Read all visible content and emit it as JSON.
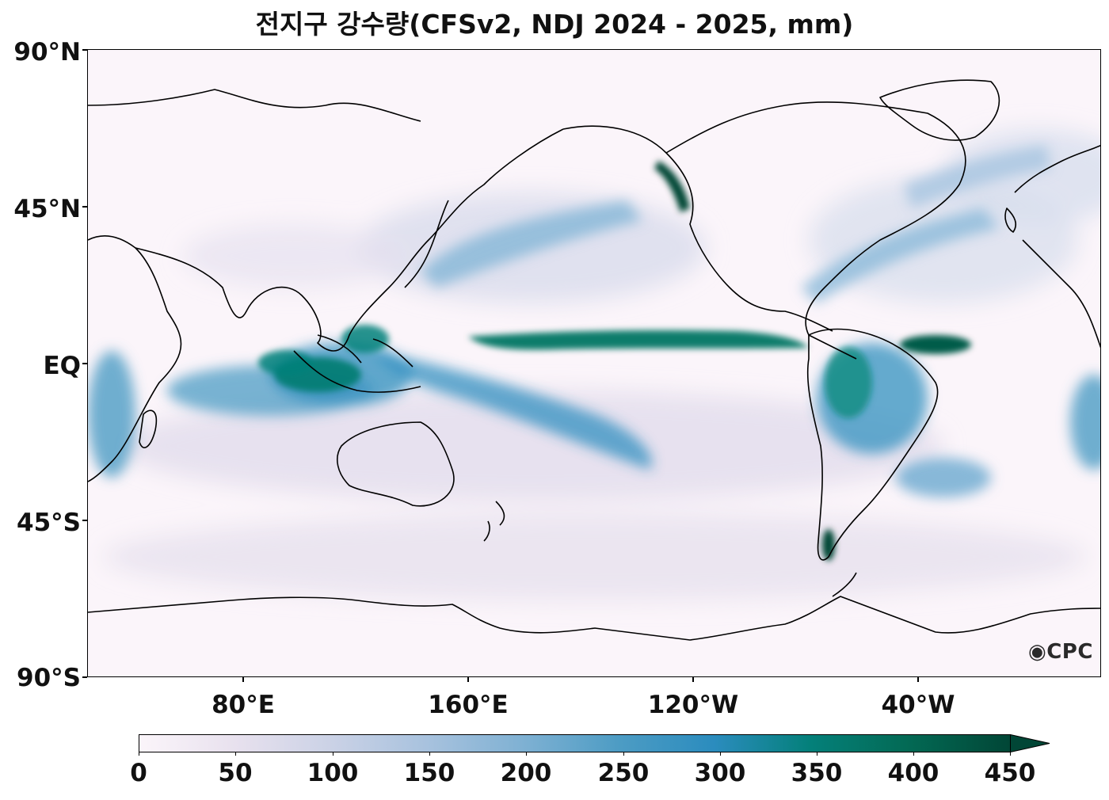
{
  "title": "전지구 강수량(CFSv2, NDJ 2024 - 2025, mm)",
  "logo_text": "CPC",
  "map": {
    "projection": "PlateCarree",
    "central_longitude": 160,
    "lon_range": [
      20,
      380
    ],
    "lat_range": [
      -90,
      90
    ],
    "lat_labels": [
      "90°N",
      "45°N",
      "EQ",
      "45°S",
      "90°S"
    ],
    "lon_labels": [
      "80°E",
      "160°E",
      "120°W",
      "40°W"
    ]
  },
  "colorbar": {
    "min": 0,
    "max": 450,
    "extend": "max",
    "tick_labels": [
      "0",
      "50",
      "100",
      "150",
      "200",
      "250",
      "300",
      "350",
      "400",
      "450"
    ],
    "colors": [
      "#fbf5fa",
      "#e8e1ee",
      "#cbd2e6",
      "#a8c2de",
      "#7fb1d3",
      "#4d9cc4",
      "#2b8cbe",
      "#04807a",
      "#036a55",
      "#014636"
    ]
  }
}
